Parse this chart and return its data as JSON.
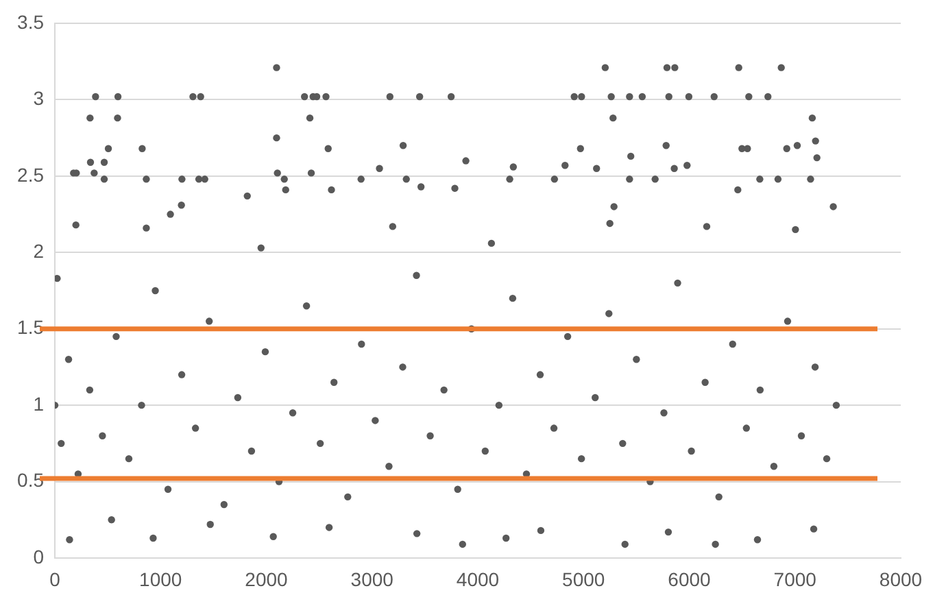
{
  "chart_data": {
    "type": "scatter",
    "xlim": [
      0,
      8000
    ],
    "xticks": [
      0,
      1000,
      2000,
      3000,
      4000,
      5000,
      6000,
      7000,
      8000
    ],
    "ylim": [
      0,
      3.5
    ],
    "yticks": [
      0,
      0.5,
      1,
      1.5,
      2,
      2.5,
      3,
      3.5
    ],
    "grid": "y",
    "marker": "circle",
    "series": [
      {
        "color": "#595959",
        "x": [
          2097,
          5205,
          5789,
          5863,
          6468,
          6870,
          385,
          597,
          1306,
          1379,
          2361,
          2442,
          2477,
          2564,
          3169,
          3450,
          3748,
          4912,
          4981,
          5262,
          5435,
          5555,
          5807,
          5996,
          6235,
          6563,
          6744,
          333,
          593,
          2412,
          5279,
          7163,
          2097,
          506,
          826,
          2585,
          3294,
          4971,
          5781,
          6498,
          6550,
          6922,
          7021,
          7194,
          7207,
          337,
          467,
          3887,
          177,
          203,
          372,
          2105,
          2425,
          3070,
          5447,
          5858,
          5979,
          5123,
          4336,
          4825,
          467,
          865,
          1202,
          1362,
          1418,
          2170,
          2896,
          3324,
          4302,
          4725,
          5435,
          5677,
          6667,
          6839,
          7147,
          2183,
          1820,
          1093,
          1197,
          2616,
          3463,
          3783,
          6459,
          5288,
          7362,
          199,
          865,
          1950,
          3195,
          4129,
          5249,
          6165,
          7004,
          139,
          930,
          1470,
          536,
          2066,
          2594,
          3424,
          3856,
          4267,
          4596,
          5392,
          5802,
          6247,
          6645,
          7177,
          22,
          0,
          60,
          130,
          220,
          330,
          450,
          580,
          700,
          820,
          950,
          1070,
          1200,
          1330,
          1460,
          1600,
          1730,
          1860,
          1990,
          2120,
          2250,
          2380,
          2510,
          2640,
          2770,
          2900,
          3030,
          3160,
          3290,
          3420,
          3550,
          3680,
          3810,
          3940,
          4070,
          4200,
          4330,
          4460,
          4590,
          4720,
          4850,
          4980,
          5110,
          5240,
          5370,
          5500,
          5630,
          5760,
          5890,
          6020,
          6150,
          6280,
          6410,
          6540,
          6670,
          6800,
          6930,
          7060,
          7190,
          7300,
          7390
        ],
        "values": [
          3.21,
          3.21,
          3.21,
          3.21,
          3.21,
          3.21,
          3.02,
          3.02,
          3.02,
          3.02,
          3.02,
          3.02,
          3.02,
          3.02,
          3.02,
          3.02,
          3.02,
          3.02,
          3.02,
          3.02,
          3.02,
          3.02,
          3.02,
          3.02,
          3.02,
          3.02,
          3.02,
          2.88,
          2.88,
          2.88,
          2.88,
          2.88,
          2.75,
          2.68,
          2.68,
          2.68,
          2.7,
          2.68,
          2.7,
          2.68,
          2.68,
          2.68,
          2.7,
          2.73,
          2.62,
          2.59,
          2.59,
          2.6,
          2.52,
          2.52,
          2.52,
          2.52,
          2.52,
          2.55,
          2.63,
          2.55,
          2.57,
          2.55,
          2.56,
          2.57,
          2.48,
          2.48,
          2.48,
          2.48,
          2.48,
          2.48,
          2.48,
          2.48,
          2.48,
          2.48,
          2.48,
          2.48,
          2.48,
          2.48,
          2.48,
          2.41,
          2.37,
          2.25,
          2.31,
          2.41,
          2.43,
          2.42,
          2.41,
          2.3,
          2.3,
          2.18,
          2.16,
          2.03,
          2.17,
          2.06,
          2.19,
          2.17,
          2.15,
          0.12,
          0.13,
          0.22,
          0.25,
          0.14,
          0.2,
          0.16,
          0.09,
          0.13,
          0.18,
          0.09,
          0.17,
          0.09,
          0.12,
          0.19,
          1.83,
          1.0,
          0.75,
          1.3,
          0.55,
          1.1,
          0.8,
          1.45,
          0.65,
          1.0,
          1.75,
          0.45,
          1.2,
          0.85,
          1.55,
          0.35,
          1.05,
          0.7,
          1.35,
          0.5,
          0.95,
          1.65,
          0.75,
          1.15,
          0.4,
          1.4,
          0.9,
          0.6,
          1.25,
          1.85,
          0.8,
          1.1,
          0.45,
          1.5,
          0.7,
          1.0,
          1.7,
          0.55,
          1.2,
          0.85,
          1.45,
          0.65,
          1.05,
          1.6,
          0.75,
          1.3,
          0.5,
          0.95,
          1.8,
          0.7,
          1.15,
          0.4,
          1.4,
          0.85,
          1.1,
          0.6,
          1.55,
          0.8,
          1.25,
          0.65,
          1.0
        ]
      }
    ],
    "ref_lines": [
      {
        "axis": "y",
        "value": 0.52,
        "color": "#ed7d31"
      },
      {
        "axis": "y",
        "value": 1.5,
        "color": "#ed7d31"
      }
    ]
  }
}
